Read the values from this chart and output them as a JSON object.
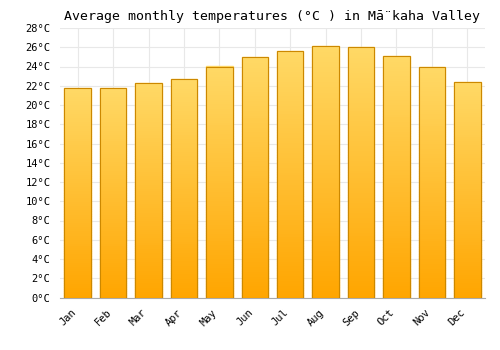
{
  "title": "Average monthly temperatures (°C ) in Mā̈kaha Valley",
  "months": [
    "Jan",
    "Feb",
    "Mar",
    "Apr",
    "May",
    "Jun",
    "Jul",
    "Aug",
    "Sep",
    "Oct",
    "Nov",
    "Dec"
  ],
  "values": [
    21.8,
    21.8,
    22.3,
    22.7,
    24.0,
    25.0,
    25.6,
    26.1,
    26.0,
    25.1,
    23.9,
    22.4
  ],
  "bar_color_bottom": "#FFA500",
  "bar_color_top": "#FFD966",
  "bar_edge_color": "#CC8800",
  "ylim": [
    0,
    28
  ],
  "ytick_step": 2,
  "background_color": "#ffffff",
  "grid_color": "#e8e8e8",
  "title_fontsize": 9.5,
  "tick_fontsize": 7.5,
  "font_family": "monospace"
}
